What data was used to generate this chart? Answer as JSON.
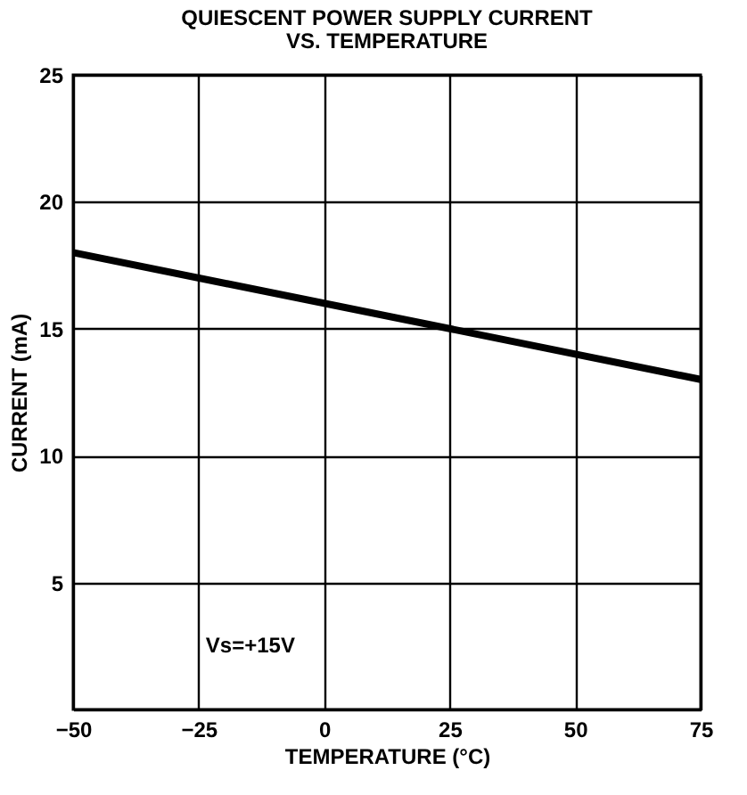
{
  "chart_data": {
    "type": "line",
    "title": "QUIESCENT POWER SUPPLY CURRENT\nVS. TEMPERATURE",
    "xlabel": "TEMPERATURE (°C)",
    "ylabel": "CURRENT (mA)",
    "x": [
      -50,
      75
    ],
    "series": [
      {
        "color": "#000000",
        "values": [
          18,
          13
        ]
      }
    ],
    "xlim": [
      -50,
      75
    ],
    "xticks": [
      -50,
      -25,
      0,
      25,
      50,
      75
    ],
    "ylim": [
      0,
      25
    ],
    "yticks": [
      {
        "value": 0,
        "label": null
      },
      5,
      10,
      15,
      20,
      25
    ],
    "grid": true,
    "marker": "none",
    "line_style": "solid",
    "annotations": [
      "Vs=+15V"
    ]
  }
}
